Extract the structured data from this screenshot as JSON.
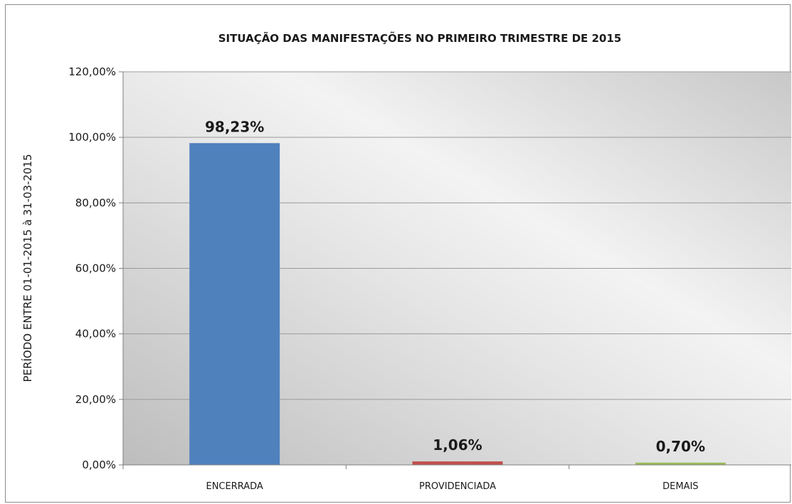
{
  "chart_data": {
    "type": "bar",
    "title": "SITUAÇÃO DAS MANIFESTAÇÕES  NO PRIMEIRO TRIMESTRE DE 2015",
    "xlabel": "",
    "ylabel": "PERÍODO ENTRE 01-01-2015 à 31-03-2015",
    "categories": [
      "ENCERRADA",
      "PROVIDENCIADA",
      "DEMAIS"
    ],
    "values": [
      98.23,
      1.06,
      0.7
    ],
    "data_labels": [
      "98,23%",
      "1,06%",
      "0,70%"
    ],
    "colors": [
      "#4f81bd",
      "#c0504d",
      "#9bbb59"
    ],
    "ylim": [
      0,
      120
    ],
    "y_ticks": [
      0,
      20,
      40,
      60,
      80,
      100,
      120
    ],
    "y_tick_labels": [
      "0,00%",
      "20,00%",
      "40,00%",
      "60,00%",
      "80,00%",
      "100,00%",
      "120,00%"
    ],
    "grid": true,
    "legend": "none"
  }
}
